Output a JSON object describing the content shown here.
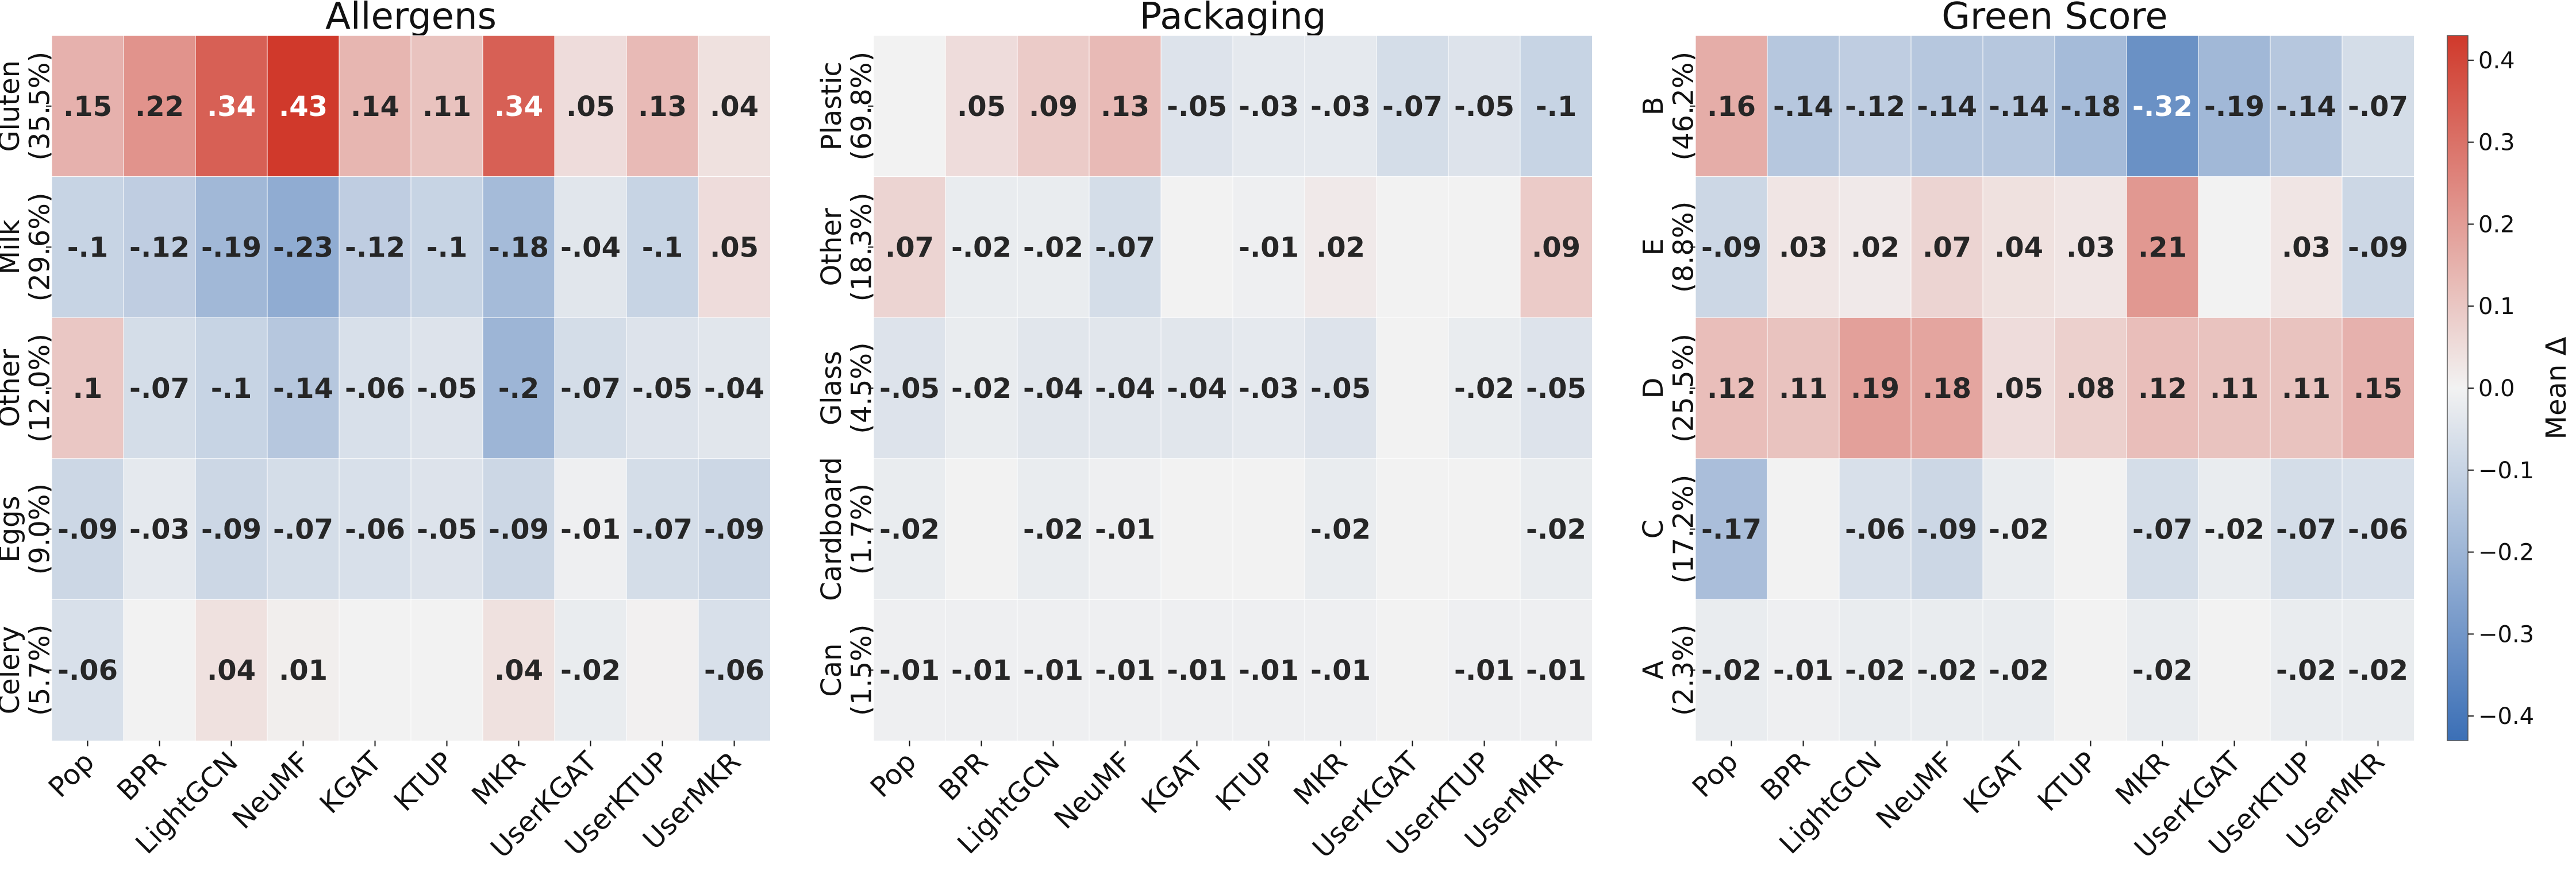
{
  "chart_data": {
    "type": "heatmap",
    "categories": [
      "Pop",
      "BPR",
      "LightGCN",
      "NeuMF",
      "KGAT",
      "KTUP",
      "MKR",
      "UserKGAT",
      "UserKTUP",
      "UserMKR"
    ],
    "panels": [
      {
        "title": "Allergens",
        "rows": [
          {
            "name": "Gluten",
            "share": "(35.5%)",
            "values": [
              0.15,
              0.22,
              0.34,
              0.43,
              0.14,
              0.11,
              0.34,
              0.05,
              0.13,
              0.04
            ],
            "labels": [
              ".15",
              ".22",
              ".34",
              ".43",
              ".14",
              ".11",
              ".34",
              ".05",
              ".13",
              ".04"
            ]
          },
          {
            "name": "Milk",
            "share": "(29.6%)",
            "values": [
              -0.1,
              -0.12,
              -0.19,
              -0.23,
              -0.12,
              -0.1,
              -0.18,
              -0.04,
              -0.1,
              0.05
            ],
            "labels": [
              "-.1",
              "-.12",
              "-.19",
              "-.23",
              "-.12",
              "-.1",
              "-.18",
              "-.04",
              "-.1",
              ".05"
            ]
          },
          {
            "name": "Other",
            "share": "(12.0%)",
            "values": [
              0.1,
              -0.07,
              -0.1,
              -0.14,
              -0.06,
              -0.05,
              -0.2,
              -0.07,
              -0.05,
              -0.04
            ],
            "labels": [
              ".1",
              "-.07",
              "-.1",
              "-.14",
              "-.06",
              "-.05",
              "-.2",
              "-.07",
              "-.05",
              "-.04"
            ]
          },
          {
            "name": "Eggs",
            "share": "(9.0%)",
            "values": [
              -0.09,
              -0.03,
              -0.09,
              -0.07,
              -0.06,
              -0.05,
              -0.09,
              -0.01,
              -0.07,
              -0.09
            ],
            "labels": [
              "-.09",
              "-.03",
              "-.09",
              "-.07",
              "-.06",
              "-.05",
              "-.09",
              "-.01",
              "-.07",
              "-.09"
            ]
          },
          {
            "name": "Celery",
            "share": "(5.7%)",
            "values": [
              -0.06,
              0.0,
              0.04,
              0.01,
              0.0,
              0.0,
              0.04,
              -0.02,
              0.005,
              -0.06
            ],
            "labels": [
              "-.06",
              "",
              ".04",
              ".01",
              "",
              "",
              ".04",
              "-.02",
              "",
              "-.06"
            ]
          }
        ]
      },
      {
        "title": "Packaging",
        "rows": [
          {
            "name": "Plastic",
            "share": "(69.8%)",
            "values": [
              0.0,
              0.05,
              0.09,
              0.13,
              -0.05,
              -0.03,
              -0.03,
              -0.07,
              -0.05,
              -0.1
            ],
            "labels": [
              "",
              ".05",
              ".09",
              ".13",
              "-.05",
              "-.03",
              "-.03",
              "-.07",
              "-.05",
              "-.1"
            ]
          },
          {
            "name": "Other",
            "share": "(18.3%)",
            "values": [
              0.07,
              -0.02,
              -0.02,
              -0.07,
              0.0,
              -0.01,
              0.02,
              0.0,
              0.0,
              0.09
            ],
            "labels": [
              ".07",
              "-.02",
              "-.02",
              "-.07",
              "",
              "-.01",
              ".02",
              "",
              "",
              ".09"
            ]
          },
          {
            "name": "Glass",
            "share": "(4.5%)",
            "values": [
              -0.05,
              -0.02,
              -0.04,
              -0.04,
              -0.04,
              -0.03,
              -0.05,
              0.0,
              -0.02,
              -0.05
            ],
            "labels": [
              "-.05",
              "-.02",
              "-.04",
              "-.04",
              "-.04",
              "-.03",
              "-.05",
              "",
              "-.02",
              "-.05"
            ]
          },
          {
            "name": "Cardboard",
            "share": "(1.7%)",
            "values": [
              -0.02,
              0.0,
              -0.02,
              -0.01,
              0.0,
              0.0,
              -0.02,
              0.0,
              0.0,
              -0.02
            ],
            "labels": [
              "-.02",
              "",
              "-.02",
              "-.01",
              "",
              "",
              "-.02",
              "",
              "",
              "-.02"
            ]
          },
          {
            "name": "Can",
            "share": "(1.5%)",
            "values": [
              -0.01,
              -0.01,
              -0.01,
              -0.01,
              -0.01,
              -0.01,
              -0.01,
              0.0,
              -0.01,
              -0.01
            ],
            "labels": [
              "-.01",
              "-.01",
              "-.01",
              "-.01",
              "-.01",
              "-.01",
              "-.01",
              "",
              "-.01",
              "-.01"
            ]
          }
        ]
      },
      {
        "title": "Green Score",
        "rows": [
          {
            "name": "B",
            "share": "(46.2%)",
            "values": [
              0.16,
              -0.14,
              -0.12,
              -0.14,
              -0.14,
              -0.18,
              -0.32,
              -0.19,
              -0.14,
              -0.07
            ],
            "labels": [
              ".16",
              "-.14",
              "-.12",
              "-.14",
              "-.14",
              "-.18",
              "-.32",
              "-.19",
              "-.14",
              "-.07"
            ]
          },
          {
            "name": "E",
            "share": "(8.8%)",
            "values": [
              -0.09,
              0.03,
              0.02,
              0.07,
              0.04,
              0.03,
              0.21,
              0.0,
              0.03,
              -0.09
            ],
            "labels": [
              "-.09",
              ".03",
              ".02",
              ".07",
              ".04",
              ".03",
              ".21",
              "",
              ".03",
              "-.09"
            ]
          },
          {
            "name": "D",
            "share": "(25.5%)",
            "values": [
              0.12,
              0.11,
              0.19,
              0.18,
              0.05,
              0.08,
              0.12,
              0.11,
              0.11,
              0.15
            ],
            "labels": [
              ".12",
              ".11",
              ".19",
              ".18",
              ".05",
              ".08",
              ".12",
              ".11",
              ".11",
              ".15"
            ]
          },
          {
            "name": "C",
            "share": "(17.2%)",
            "values": [
              -0.17,
              0.0,
              -0.06,
              -0.09,
              -0.02,
              0.0,
              -0.07,
              -0.02,
              -0.07,
              -0.06
            ],
            "labels": [
              "-.17",
              "",
              "-.06",
              "-.09",
              "-.02",
              "",
              "-.07",
              "-.02",
              "-.07",
              "-.06"
            ]
          },
          {
            "name": "A",
            "share": "(2.3%)",
            "values": [
              -0.02,
              -0.01,
              -0.02,
              -0.02,
              -0.02,
              0.0,
              -0.02,
              0.0,
              -0.02,
              -0.02
            ],
            "labels": [
              "-.02",
              "-.01",
              "-.02",
              "-.02",
              "-.02",
              "",
              "-.02",
              "",
              "-.02",
              "-.02"
            ]
          }
        ]
      }
    ],
    "colorbar": {
      "label": "Mean Δ",
      "range": [
        -0.43,
        0.43
      ],
      "ticks": [
        0.4,
        0.3,
        0.2,
        0.1,
        0.0,
        -0.1,
        -0.2,
        -0.3,
        -0.4
      ],
      "tick_labels": [
        "0.4",
        "0.3",
        "0.2",
        "0.1",
        "0.0",
        "−0.1",
        "−0.2",
        "−0.3",
        "−0.4"
      ],
      "colormap_low": "#3b6fb6",
      "colormap_mid": "#f2f2f2",
      "colormap_high": "#d0392b"
    }
  }
}
